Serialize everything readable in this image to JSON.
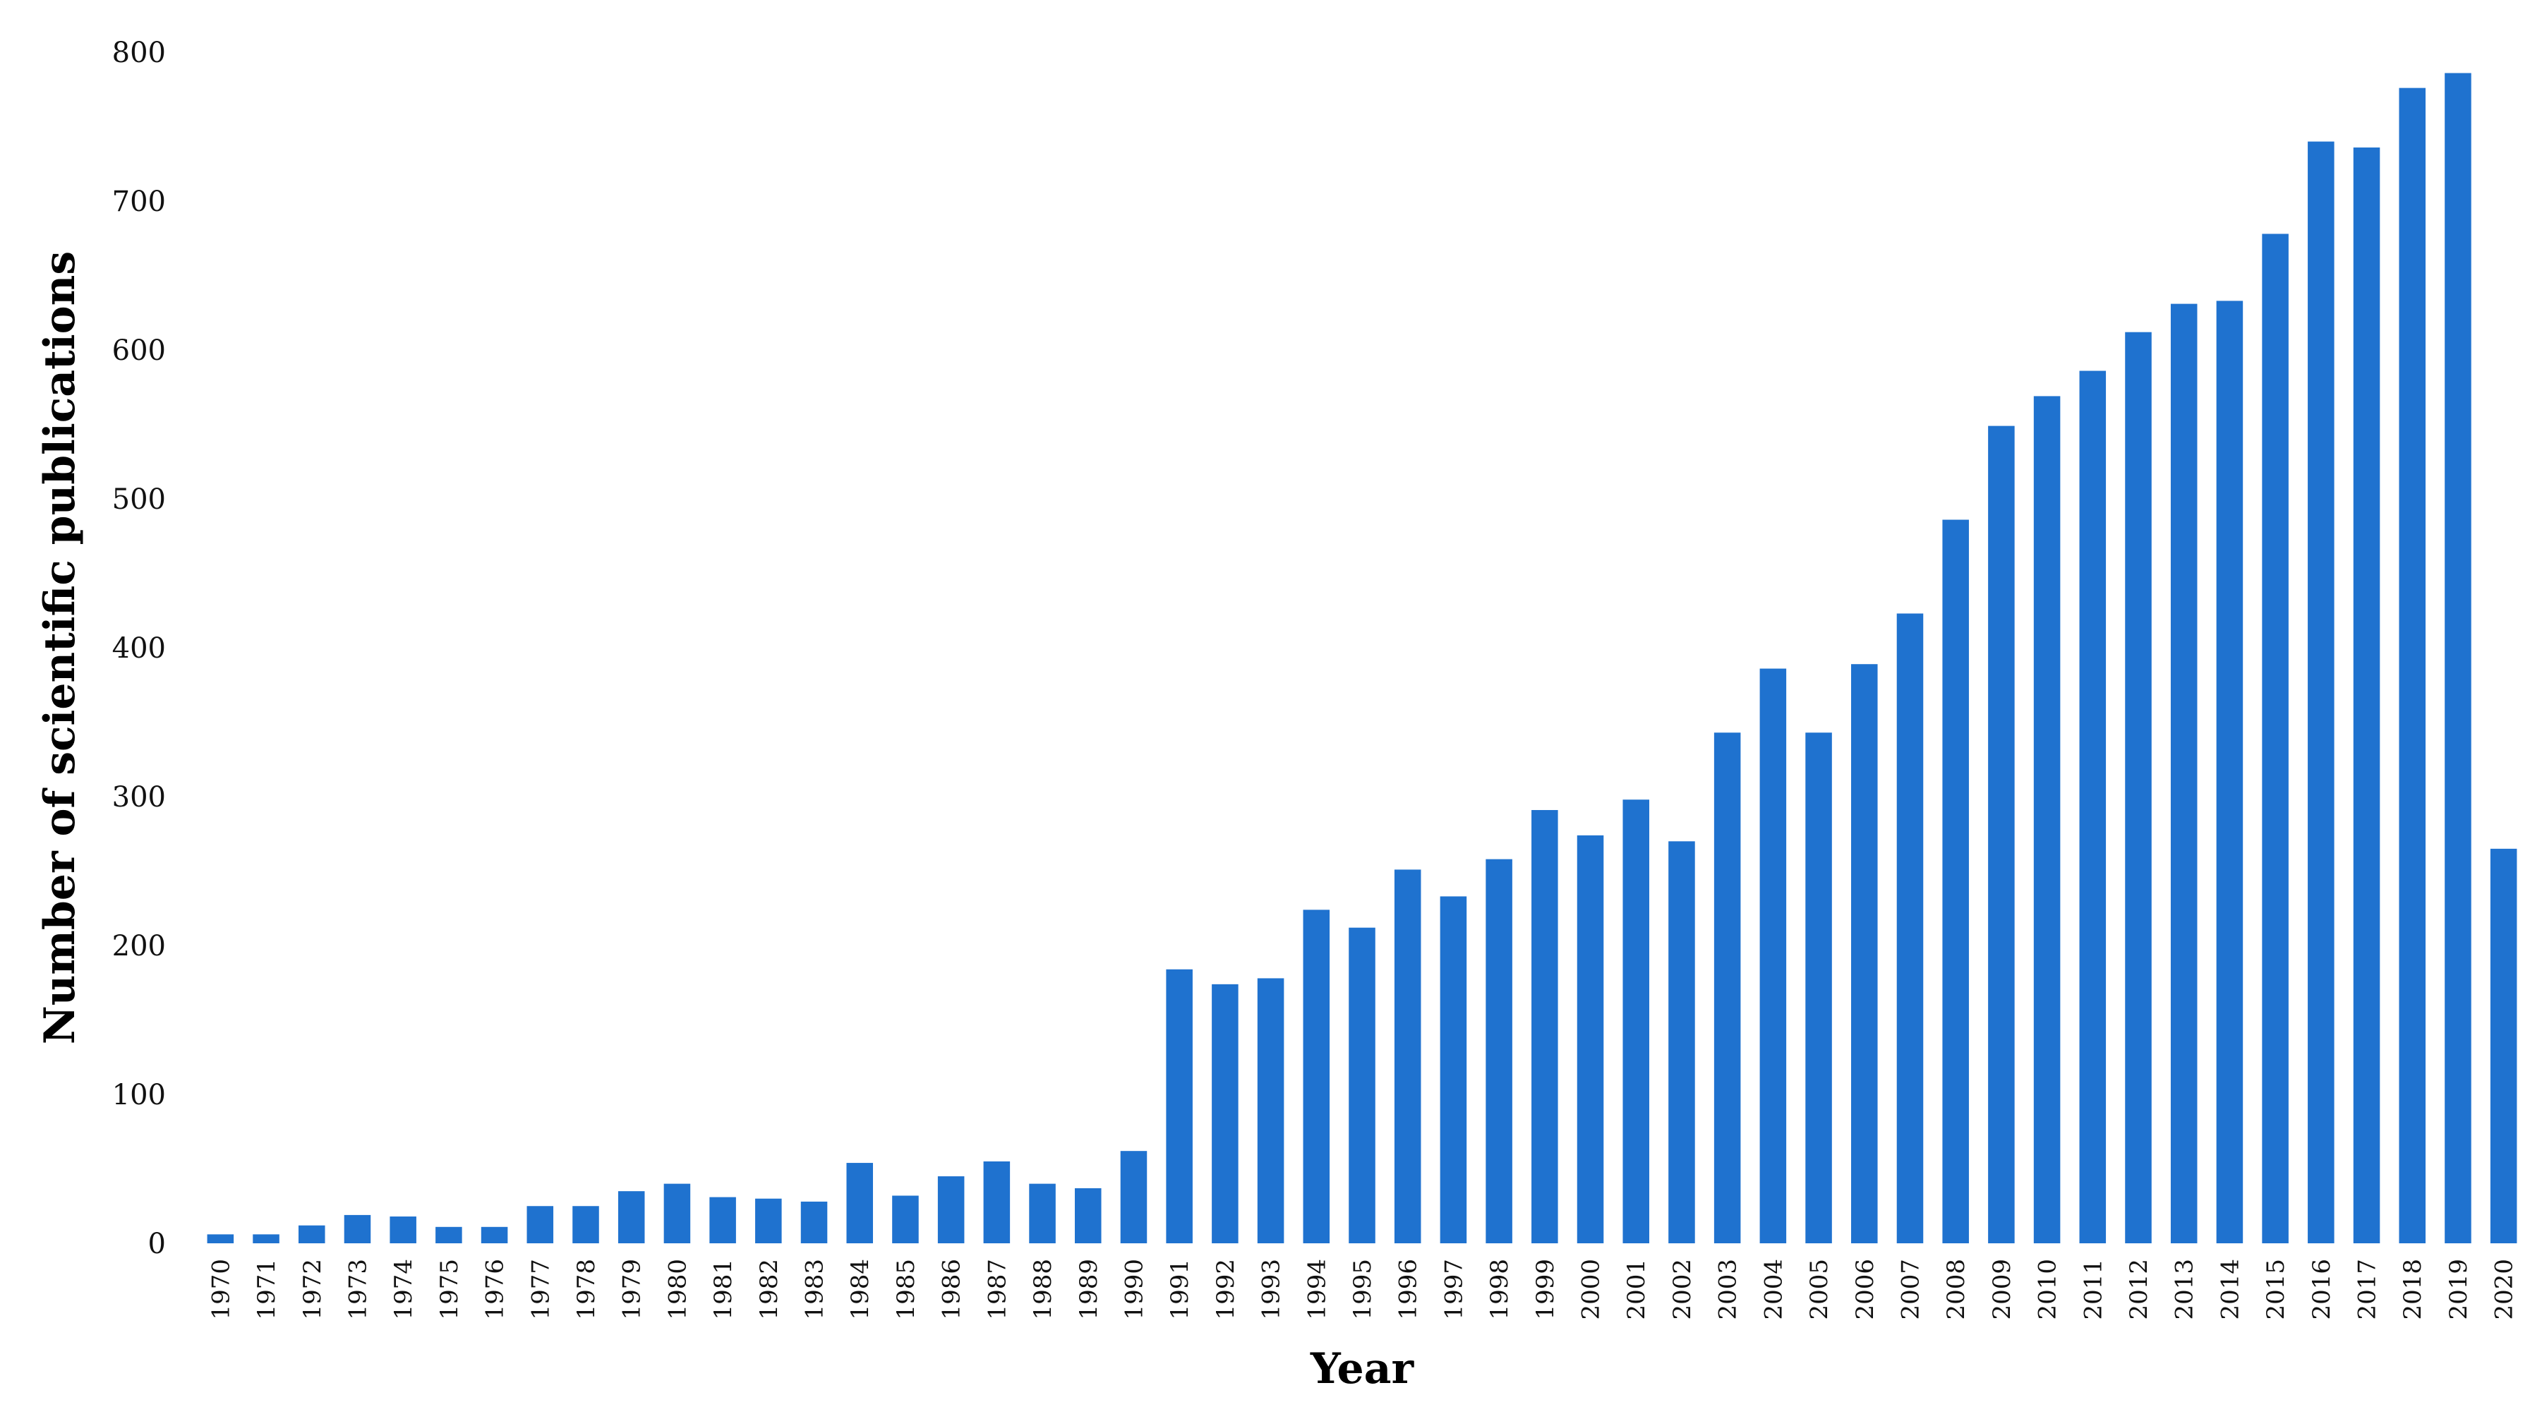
{
  "colors": {
    "bar": "#1f72cf",
    "text": "#111111",
    "background": "#ffffff"
  },
  "chart_data": {
    "type": "bar",
    "title": "",
    "xlabel": "Year",
    "ylabel": "Number of scientific publications",
    "ylim": [
      0,
      800
    ],
    "yticks": [
      0,
      100,
      200,
      300,
      400,
      500,
      600,
      700,
      800
    ],
    "ytick_labels": [
      "0",
      "100",
      "200",
      "300",
      "400",
      "500",
      "600",
      "700",
      "800"
    ],
    "grid": false,
    "legend": "none",
    "categories": [
      "1970",
      "1971",
      "1972",
      "1973",
      "1974",
      "1975",
      "1976",
      "1977",
      "1978",
      "1979",
      "1980",
      "1981",
      "1982",
      "1983",
      "1984",
      "1985",
      "1986",
      "1987",
      "1988",
      "1989",
      "1990",
      "1991",
      "1992",
      "1993",
      "1994",
      "1995",
      "1996",
      "1997",
      "1998",
      "1999",
      "2000",
      "2001",
      "2002",
      "2003",
      "2004",
      "2005",
      "2006",
      "2007",
      "2008",
      "2009",
      "2010",
      "2011",
      "2012",
      "2013",
      "2014",
      "2015",
      "2016",
      "2017",
      "2018",
      "2019",
      "2020"
    ],
    "values": [
      6,
      6,
      12,
      19,
      18,
      11,
      11,
      25,
      25,
      35,
      40,
      31,
      30,
      28,
      54,
      32,
      45,
      55,
      40,
      37,
      62,
      184,
      174,
      178,
      224,
      212,
      251,
      233,
      258,
      291,
      274,
      298,
      270,
      343,
      386,
      343,
      389,
      423,
      486,
      549,
      569,
      586,
      612,
      631,
      633,
      678,
      740,
      736,
      776,
      786,
      265
    ]
  }
}
